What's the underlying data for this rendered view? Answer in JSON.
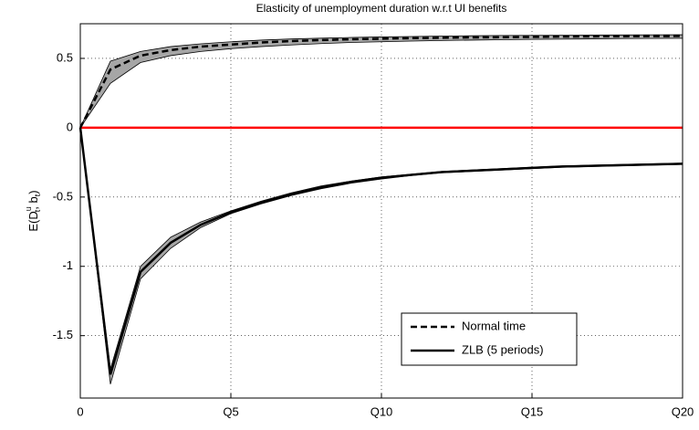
{
  "chart_data": {
    "type": "line",
    "title": "Elasticity of unemployment duration w.r.t UI benefits",
    "ylabel_parts": [
      "E(D",
      "u",
      "t",
      ", b",
      "t",
      ")"
    ],
    "x": [
      0,
      1,
      2,
      3,
      4,
      5,
      6,
      7,
      8,
      9,
      10,
      11,
      12,
      13,
      14,
      15,
      16,
      17,
      18,
      19,
      20
    ],
    "series": [
      {
        "name": "Normal time",
        "color": "#000000",
        "dash": "dashed",
        "band_color": "#a6a6a6",
        "values": [
          0,
          0.42,
          0.52,
          0.56,
          0.585,
          0.6,
          0.615,
          0.625,
          0.632,
          0.638,
          0.642,
          0.646,
          0.649,
          0.651,
          0.653,
          0.655,
          0.657,
          0.658,
          0.659,
          0.66,
          0.661
        ],
        "upper": [
          0,
          0.48,
          0.55,
          0.585,
          0.605,
          0.62,
          0.632,
          0.64,
          0.646,
          0.651,
          0.655,
          0.658,
          0.661,
          0.663,
          0.665,
          0.666,
          0.667,
          0.668,
          0.669,
          0.67,
          0.671
        ],
        "lower": [
          0,
          0.32,
          0.47,
          0.52,
          0.55,
          0.57,
          0.585,
          0.597,
          0.607,
          0.615,
          0.62,
          0.625,
          0.629,
          0.632,
          0.635,
          0.637,
          0.639,
          0.641,
          0.643,
          0.644,
          0.645
        ]
      },
      {
        "name": "ZLB (5 periods)",
        "color": "#000000",
        "dash": "solid",
        "band_color": "#a6a6a6",
        "values": [
          0,
          -1.78,
          -1.04,
          -0.83,
          -0.7,
          -0.61,
          -0.54,
          -0.48,
          -0.43,
          -0.39,
          -0.36,
          -0.34,
          -0.32,
          -0.31,
          -0.3,
          -0.29,
          -0.28,
          -0.275,
          -0.27,
          -0.265,
          -0.26
        ],
        "upper": [
          0,
          -1.74,
          -1.0,
          -0.79,
          -0.68,
          -0.6,
          -0.53,
          -0.47,
          -0.42,
          -0.385,
          -0.355,
          -0.335,
          -0.315,
          -0.305,
          -0.295,
          -0.285,
          -0.276,
          -0.27,
          -0.265,
          -0.26,
          -0.255
        ],
        "lower": [
          0,
          -1.85,
          -1.09,
          -0.87,
          -0.72,
          -0.62,
          -0.55,
          -0.49,
          -0.44,
          -0.4,
          -0.37,
          -0.345,
          -0.325,
          -0.315,
          -0.305,
          -0.295,
          -0.285,
          -0.28,
          -0.275,
          -0.27,
          -0.265
        ]
      }
    ],
    "hline": 0,
    "hline_color": "#ff0000",
    "xlim": [
      0,
      20
    ],
    "xticks": [
      0,
      {
        "value": 5,
        "label": "Q5"
      },
      {
        "value": 10,
        "label": "Q10"
      },
      {
        "value": 15,
        "label": "Q15"
      },
      {
        "value": 20,
        "label": "Q20"
      }
    ],
    "ylim": [
      -1.95,
      0.75
    ],
    "yticks": [
      -1.5,
      -1,
      -0.5,
      0,
      0.5
    ],
    "grid": true,
    "legend": "lower right"
  }
}
